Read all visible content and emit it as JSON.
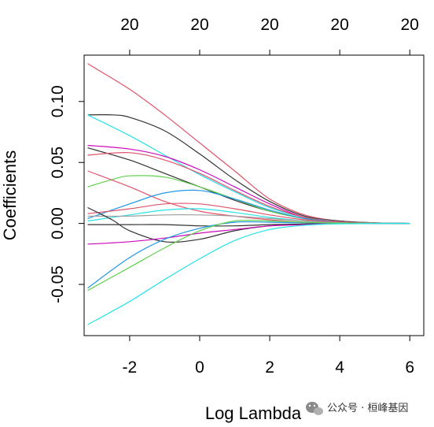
{
  "chart_data": {
    "type": "line",
    "title": "",
    "xlabel": "Log Lambda",
    "ylabel": "Coefficients",
    "xlim": [
      -3.3,
      6.4
    ],
    "ylim": [
      -0.092,
      0.138
    ],
    "x_ticks": [
      -2,
      0,
      2,
      4,
      6
    ],
    "x_tick_labels": [
      "-2",
      "0",
      "2",
      "4",
      "6"
    ],
    "y_ticks": [
      -0.05,
      0.0,
      0.05,
      0.1
    ],
    "y_tick_labels": [
      "-0.05",
      "0.00",
      "0.05",
      "0.10"
    ],
    "top_ticks": [
      -2,
      0,
      2,
      4,
      6
    ],
    "top_tick_labels": [
      "20",
      "20",
      "20",
      "20",
      "20"
    ],
    "grid": false,
    "legend": "none",
    "series": [
      {
        "color": "#DF536B",
        "points": [
          [
            -3.2,
            0.131
          ],
          [
            -2.0,
            0.11
          ],
          [
            -1.0,
            0.089
          ],
          [
            0.0,
            0.066
          ],
          [
            1.0,
            0.043
          ],
          [
            2.0,
            0.02
          ],
          [
            3.0,
            0.007
          ],
          [
            4.0,
            0.002
          ],
          [
            5.0,
            0.0005
          ],
          [
            6.0,
            0.0
          ]
        ]
      },
      {
        "color": "#333333",
        "points": [
          [
            -3.2,
            0.089
          ],
          [
            -2.5,
            0.089
          ],
          [
            -2.0,
            0.087
          ],
          [
            -1.0,
            0.076
          ],
          [
            0.0,
            0.057
          ],
          [
            1.0,
            0.036
          ],
          [
            2.0,
            0.018
          ],
          [
            3.0,
            0.006
          ],
          [
            4.0,
            0.002
          ],
          [
            5.0,
            0.0005
          ],
          [
            6.0,
            0.0
          ]
        ]
      },
      {
        "color": "#28E2E5",
        "points": [
          [
            -3.2,
            0.089
          ],
          [
            -2.0,
            0.072
          ],
          [
            -1.0,
            0.056
          ],
          [
            0.0,
            0.04
          ],
          [
            1.0,
            0.026
          ],
          [
            2.0,
            0.013
          ],
          [
            3.0,
            0.005
          ],
          [
            4.0,
            0.0015
          ],
          [
            5.0,
            0.0004
          ],
          [
            6.0,
            0.0
          ]
        ]
      },
      {
        "color": "#CD0BBC",
        "points": [
          [
            -3.2,
            0.064
          ],
          [
            -2.0,
            0.061
          ],
          [
            -1.0,
            0.055
          ],
          [
            0.0,
            0.044
          ],
          [
            1.0,
            0.03
          ],
          [
            2.0,
            0.016
          ],
          [
            3.0,
            0.005
          ],
          [
            4.0,
            0.0015
          ],
          [
            5.0,
            0.0004
          ],
          [
            6.0,
            0.0
          ]
        ]
      },
      {
        "color": "#333333",
        "points": [
          [
            -3.2,
            0.062
          ],
          [
            -2.0,
            0.052
          ],
          [
            -1.0,
            0.041
          ],
          [
            0.0,
            0.03
          ],
          [
            1.0,
            0.019
          ],
          [
            2.0,
            0.01
          ],
          [
            3.0,
            0.004
          ],
          [
            4.0,
            0.001
          ],
          [
            5.0,
            0.0003
          ],
          [
            6.0,
            0.0
          ]
        ]
      },
      {
        "color": "#DF536B",
        "points": [
          [
            -3.2,
            0.056
          ],
          [
            -2.0,
            0.058
          ],
          [
            -1.0,
            0.052
          ],
          [
            0.0,
            0.041
          ],
          [
            1.0,
            0.027
          ],
          [
            2.0,
            0.014
          ],
          [
            3.0,
            0.005
          ],
          [
            4.0,
            0.0015
          ],
          [
            5.0,
            0.0004
          ],
          [
            6.0,
            0.0
          ]
        ]
      },
      {
        "color": "#61D04F",
        "points": [
          [
            -3.2,
            0.03
          ],
          [
            -2.5,
            0.036
          ],
          [
            -2.0,
            0.039
          ],
          [
            -1.0,
            0.038
          ],
          [
            0.0,
            0.03
          ],
          [
            1.0,
            0.02
          ],
          [
            2.0,
            0.01
          ],
          [
            3.0,
            0.004
          ],
          [
            4.0,
            0.001
          ],
          [
            5.0,
            0.0003
          ],
          [
            6.0,
            0.0
          ]
        ]
      },
      {
        "color": "#DF536B",
        "points": [
          [
            -3.2,
            0.043
          ],
          [
            -2.0,
            0.03
          ],
          [
            -1.0,
            0.018
          ],
          [
            0.0,
            0.01
          ],
          [
            1.0,
            0.006
          ],
          [
            2.0,
            0.003
          ],
          [
            3.0,
            0.001
          ],
          [
            4.0,
            0.0003
          ],
          [
            6.0,
            0.0
          ]
        ]
      },
      {
        "color": "#2297E6",
        "points": [
          [
            -3.2,
            0.004
          ],
          [
            -2.0,
            0.016
          ],
          [
            -1.0,
            0.025
          ],
          [
            0.0,
            0.027
          ],
          [
            1.0,
            0.02
          ],
          [
            2.0,
            0.011
          ],
          [
            3.0,
            0.004
          ],
          [
            4.0,
            0.001
          ],
          [
            5.0,
            0.0003
          ],
          [
            6.0,
            0.0
          ]
        ]
      },
      {
        "color": "#DF536B",
        "points": [
          [
            -3.2,
            0.008
          ],
          [
            -2.0,
            0.012
          ],
          [
            -1.0,
            0.016
          ],
          [
            0.0,
            0.016
          ],
          [
            1.0,
            0.012
          ],
          [
            2.0,
            0.007
          ],
          [
            3.0,
            0.003
          ],
          [
            4.0,
            0.001
          ],
          [
            6.0,
            0.0
          ]
        ]
      },
      {
        "color": "#28E2E5",
        "points": [
          [
            -3.2,
            0.002
          ],
          [
            -2.0,
            0.007
          ],
          [
            -1.0,
            0.011
          ],
          [
            0.0,
            0.012
          ],
          [
            1.0,
            0.009
          ],
          [
            2.0,
            0.005
          ],
          [
            3.0,
            0.002
          ],
          [
            4.0,
            0.0005
          ],
          [
            6.0,
            0.0
          ]
        ]
      },
      {
        "color": "#9E9E9E",
        "points": [
          [
            -3.2,
            0.006
          ],
          [
            -2.0,
            0.006
          ],
          [
            -1.0,
            0.007
          ],
          [
            0.0,
            0.007
          ],
          [
            1.0,
            0.006
          ],
          [
            2.0,
            0.004
          ],
          [
            3.0,
            0.002
          ],
          [
            4.0,
            0.0005
          ],
          [
            6.0,
            0.0
          ]
        ]
      },
      {
        "color": "#333333",
        "points": [
          [
            -3.2,
            0.013
          ],
          [
            -2.5,
            0.003
          ],
          [
            -2.0,
            -0.006
          ],
          [
            -1.0,
            -0.015
          ],
          [
            0.0,
            -0.013
          ],
          [
            1.0,
            -0.006
          ],
          [
            2.0,
            -0.002
          ],
          [
            3.0,
            -0.0005
          ],
          [
            4.0,
            0.0
          ],
          [
            6.0,
            0.0
          ]
        ]
      },
      {
        "color": "#333333",
        "points": [
          [
            -3.2,
            -0.001
          ],
          [
            -2.0,
            -0.001
          ],
          [
            -1.0,
            -0.001
          ],
          [
            0.0,
            -0.002
          ],
          [
            1.0,
            -0.002
          ],
          [
            2.0,
            -0.001
          ],
          [
            3.0,
            -0.0005
          ],
          [
            4.0,
            0.0
          ],
          [
            6.0,
            0.0
          ]
        ]
      },
      {
        "color": "#CD0BBC",
        "points": [
          [
            -3.2,
            -0.017
          ],
          [
            -2.0,
            -0.015
          ],
          [
            -1.0,
            -0.012
          ],
          [
            0.0,
            -0.008
          ],
          [
            1.0,
            -0.005
          ],
          [
            2.0,
            -0.002
          ],
          [
            3.0,
            -0.001
          ],
          [
            4.0,
            0.0
          ],
          [
            6.0,
            0.0
          ]
        ]
      },
      {
        "color": "#2297E6",
        "points": [
          [
            -3.2,
            -0.053
          ],
          [
            -2.0,
            -0.028
          ],
          [
            -1.0,
            -0.013
          ],
          [
            0.0,
            -0.004
          ],
          [
            1.0,
            0.001
          ],
          [
            2.0,
            0.001
          ],
          [
            3.0,
            0.0005
          ],
          [
            6.0,
            0.0
          ]
        ]
      },
      {
        "color": "#61D04F",
        "points": [
          [
            -3.2,
            -0.055
          ],
          [
            -2.0,
            -0.036
          ],
          [
            -1.0,
            -0.02
          ],
          [
            0.0,
            -0.006
          ],
          [
            1.0,
            0.002
          ],
          [
            2.0,
            0.002
          ],
          [
            3.0,
            0.001
          ],
          [
            4.0,
            0.0003
          ],
          [
            6.0,
            0.0
          ]
        ]
      },
      {
        "color": "#28E2E5",
        "points": [
          [
            -3.2,
            -0.083
          ],
          [
            -2.0,
            -0.064
          ],
          [
            -1.0,
            -0.046
          ],
          [
            0.0,
            -0.029
          ],
          [
            1.0,
            -0.014
          ],
          [
            2.0,
            -0.005
          ],
          [
            3.0,
            -0.0015
          ],
          [
            4.0,
            -0.0003
          ],
          [
            6.0,
            0.0
          ]
        ]
      }
    ]
  },
  "watermark": {
    "text": "公众号 · 桓峰基因",
    "icon": "wechat-icon"
  }
}
